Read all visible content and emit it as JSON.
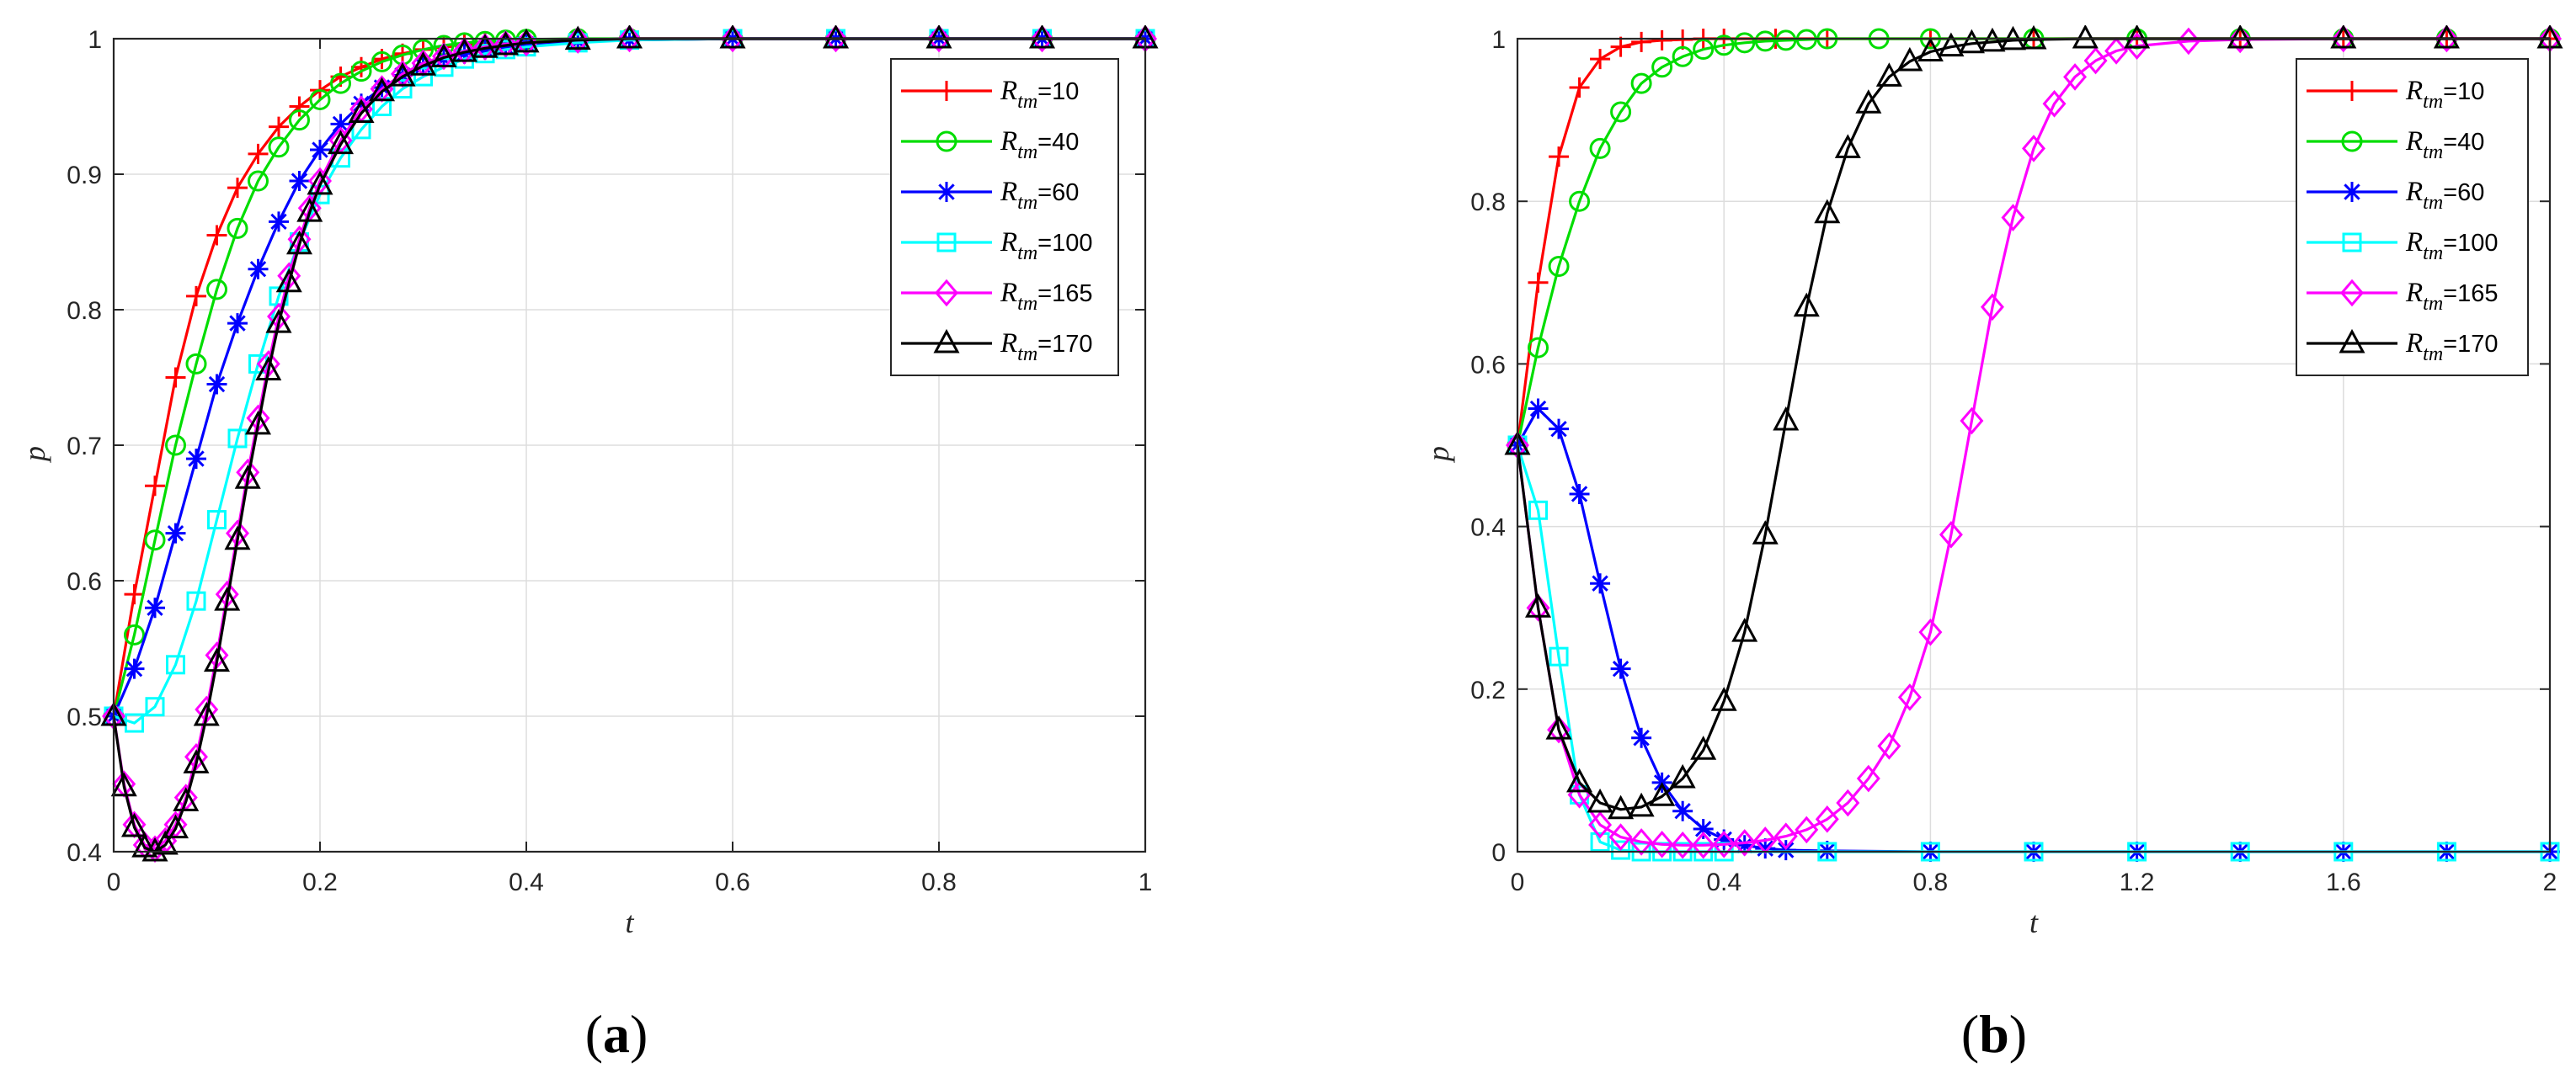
{
  "colors": {
    "r10": "#ff0000",
    "r40": "#00dd00",
    "r60": "#0000ff",
    "r100": "#00ffff",
    "r165": "#ff00ff",
    "r170": "#000000"
  },
  "labels": {
    "panel_a": {
      "open": "(",
      "letter": "a",
      "close": ")"
    },
    "panel_b": {
      "open": "(",
      "letter": "b",
      "close": ")"
    }
  },
  "chart_data": [
    {
      "id": "a",
      "type": "line",
      "xlabel": "t",
      "ylabel": "p",
      "xlim": [
        0,
        1
      ],
      "ylim": [
        0.4,
        1
      ],
      "xticks": [
        0,
        0.2,
        0.4,
        0.6,
        0.8,
        1
      ],
      "xtick_labels": [
        "0",
        "0.2",
        "0.4",
        "0.6",
        "0.8",
        "1"
      ],
      "yticks": [
        0.4,
        0.5,
        0.6,
        0.7,
        0.8,
        0.9,
        1
      ],
      "ytick_labels": [
        "0.4",
        "0.5",
        "0.6",
        "0.7",
        "0.8",
        "0.9",
        "1"
      ],
      "grid": true,
      "legend_position": "top-right",
      "series": [
        {
          "symbol": "R",
          "sub": "tm",
          "eq": "=10",
          "color_key": "r10",
          "marker": "plus",
          "x": [
            0,
            0.02,
            0.04,
            0.06,
            0.08,
            0.1,
            0.12,
            0.14,
            0.16,
            0.18,
            0.2,
            0.22,
            0.24,
            0.26,
            0.28,
            0.3,
            0.32,
            0.34,
            0.36,
            0.38,
            0.4,
            0.45,
            0.5,
            0.6,
            0.7,
            0.8,
            0.9,
            1.0
          ],
          "y": [
            0.5,
            0.59,
            0.67,
            0.75,
            0.81,
            0.855,
            0.89,
            0.915,
            0.935,
            0.95,
            0.962,
            0.972,
            0.979,
            0.985,
            0.989,
            0.992,
            0.994,
            0.996,
            0.997,
            0.998,
            0.999,
            0.9995,
            1,
            1,
            1,
            1,
            1,
            1
          ]
        },
        {
          "symbol": "R",
          "sub": "tm",
          "eq": "=40",
          "color_key": "r40",
          "marker": "circle",
          "x": [
            0,
            0.02,
            0.04,
            0.06,
            0.08,
            0.1,
            0.12,
            0.14,
            0.16,
            0.18,
            0.2,
            0.22,
            0.24,
            0.26,
            0.28,
            0.3,
            0.32,
            0.34,
            0.36,
            0.38,
            0.4,
            0.45,
            0.5,
            0.6,
            0.7,
            0.8,
            0.9,
            1.0
          ],
          "y": [
            0.5,
            0.56,
            0.63,
            0.7,
            0.76,
            0.815,
            0.86,
            0.895,
            0.92,
            0.94,
            0.955,
            0.967,
            0.976,
            0.983,
            0.988,
            0.992,
            0.995,
            0.997,
            0.998,
            0.999,
            0.9995,
            1,
            1,
            1,
            1,
            1,
            1,
            1
          ]
        },
        {
          "symbol": "R",
          "sub": "tm",
          "eq": "=60",
          "color_key": "r60",
          "marker": "star",
          "x": [
            0,
            0.02,
            0.04,
            0.06,
            0.08,
            0.1,
            0.12,
            0.14,
            0.16,
            0.18,
            0.2,
            0.22,
            0.24,
            0.26,
            0.28,
            0.3,
            0.32,
            0.34,
            0.36,
            0.38,
            0.4,
            0.45,
            0.5,
            0.6,
            0.7,
            0.8,
            0.9,
            1.0
          ],
          "y": [
            0.5,
            0.535,
            0.58,
            0.635,
            0.69,
            0.745,
            0.79,
            0.83,
            0.865,
            0.895,
            0.918,
            0.937,
            0.952,
            0.964,
            0.973,
            0.98,
            0.985,
            0.989,
            0.992,
            0.994,
            0.996,
            0.998,
            0.999,
            1,
            1,
            1,
            1,
            1
          ]
        },
        {
          "symbol": "R",
          "sub": "tm",
          "eq": "=100",
          "color_key": "r100",
          "marker": "square",
          "x": [
            0,
            0.02,
            0.04,
            0.06,
            0.08,
            0.1,
            0.12,
            0.14,
            0.16,
            0.18,
            0.2,
            0.22,
            0.24,
            0.26,
            0.28,
            0.3,
            0.32,
            0.34,
            0.36,
            0.38,
            0.4,
            0.45,
            0.5,
            0.6,
            0.7,
            0.8,
            0.9,
            1.0
          ],
          "y": [
            0.5,
            0.495,
            0.507,
            0.538,
            0.585,
            0.645,
            0.705,
            0.76,
            0.81,
            0.85,
            0.885,
            0.912,
            0.933,
            0.95,
            0.963,
            0.972,
            0.979,
            0.985,
            0.989,
            0.992,
            0.994,
            0.997,
            0.999,
            1,
            1,
            1,
            1,
            1
          ]
        },
        {
          "symbol": "R",
          "sub": "tm",
          "eq": "=165",
          "color_key": "r165",
          "marker": "diamond",
          "x": [
            0,
            0.01,
            0.02,
            0.03,
            0.04,
            0.05,
            0.06,
            0.07,
            0.08,
            0.09,
            0.1,
            0.11,
            0.12,
            0.13,
            0.14,
            0.15,
            0.16,
            0.17,
            0.18,
            0.19,
            0.2,
            0.22,
            0.24,
            0.26,
            0.28,
            0.3,
            0.32,
            0.34,
            0.36,
            0.38,
            0.4,
            0.45,
            0.5,
            0.6,
            0.7,
            0.8,
            0.9,
            1.0
          ],
          "y": [
            0.5,
            0.45,
            0.42,
            0.405,
            0.402,
            0.408,
            0.42,
            0.44,
            0.47,
            0.505,
            0.545,
            0.59,
            0.635,
            0.68,
            0.72,
            0.76,
            0.795,
            0.825,
            0.852,
            0.875,
            0.895,
            0.925,
            0.948,
            0.963,
            0.974,
            0.982,
            0.987,
            0.991,
            0.994,
            0.996,
            0.997,
            0.999,
            1,
            1,
            1,
            1,
            1,
            1
          ]
        },
        {
          "symbol": "R",
          "sub": "tm",
          "eq": "=170",
          "color_key": "r170",
          "marker": "triangle",
          "x": [
            0,
            0.01,
            0.02,
            0.03,
            0.04,
            0.05,
            0.06,
            0.07,
            0.08,
            0.09,
            0.1,
            0.11,
            0.12,
            0.13,
            0.14,
            0.15,
            0.16,
            0.17,
            0.18,
            0.19,
            0.2,
            0.22,
            0.24,
            0.26,
            0.28,
            0.3,
            0.32,
            0.34,
            0.36,
            0.38,
            0.4,
            0.45,
            0.5,
            0.6,
            0.7,
            0.8,
            0.9,
            1.0
          ],
          "y": [
            0.5,
            0.448,
            0.418,
            0.403,
            0.4,
            0.405,
            0.417,
            0.437,
            0.465,
            0.5,
            0.54,
            0.585,
            0.63,
            0.675,
            0.715,
            0.755,
            0.79,
            0.82,
            0.848,
            0.872,
            0.892,
            0.922,
            0.945,
            0.961,
            0.972,
            0.98,
            0.986,
            0.99,
            0.993,
            0.995,
            0.997,
            0.999,
            1,
            1,
            1,
            1,
            1,
            1
          ]
        }
      ]
    },
    {
      "id": "b",
      "type": "line",
      "xlabel": "t",
      "ylabel": "p",
      "xlim": [
        0,
        2
      ],
      "ylim": [
        0,
        1
      ],
      "xticks": [
        0,
        0.4,
        0.8,
        1.2,
        1.6,
        2
      ],
      "xtick_labels": [
        "0",
        "0.4",
        "0.8",
        "1.2",
        "1.6",
        "2"
      ],
      "yticks": [
        0,
        0.2,
        0.4,
        0.6,
        0.8,
        1
      ],
      "ytick_labels": [
        "0",
        "0.2",
        "0.4",
        "0.6",
        "0.8",
        "1"
      ],
      "grid": true,
      "legend_position": "top-right",
      "series": [
        {
          "symbol": "R",
          "sub": "tm",
          "eq": "=10",
          "color_key": "r10",
          "marker": "plus",
          "x": [
            0,
            0.04,
            0.08,
            0.12,
            0.16,
            0.2,
            0.24,
            0.28,
            0.32,
            0.36,
            0.4,
            0.5,
            0.6,
            0.8,
            1.0,
            1.2,
            1.4,
            1.6,
            1.8,
            2.0
          ],
          "y": [
            0.5,
            0.7,
            0.855,
            0.94,
            0.975,
            0.99,
            0.996,
            0.998,
            0.999,
            1,
            1,
            1,
            1,
            1,
            1,
            1,
            1,
            1,
            1,
            1
          ]
        },
        {
          "symbol": "R",
          "sub": "tm",
          "eq": "=40",
          "color_key": "r40",
          "marker": "circle",
          "x": [
            0,
            0.04,
            0.08,
            0.12,
            0.16,
            0.2,
            0.24,
            0.28,
            0.32,
            0.36,
            0.4,
            0.44,
            0.48,
            0.52,
            0.56,
            0.6,
            0.7,
            0.8,
            1.0,
            1.2,
            1.4,
            1.6,
            1.8,
            2.0
          ],
          "y": [
            0.5,
            0.62,
            0.72,
            0.8,
            0.865,
            0.91,
            0.945,
            0.965,
            0.978,
            0.987,
            0.992,
            0.995,
            0.997,
            0.998,
            0.999,
            1,
            1,
            1,
            1,
            1,
            1,
            1,
            1,
            1
          ]
        },
        {
          "symbol": "R",
          "sub": "tm",
          "eq": "=60",
          "color_key": "r60",
          "marker": "star",
          "x": [
            0,
            0.04,
            0.08,
            0.12,
            0.16,
            0.2,
            0.24,
            0.28,
            0.32,
            0.36,
            0.4,
            0.44,
            0.48,
            0.52,
            0.6,
            0.8,
            1.0,
            1.2,
            1.4,
            1.6,
            1.8,
            2.0
          ],
          "y": [
            0.5,
            0.545,
            0.52,
            0.44,
            0.33,
            0.225,
            0.14,
            0.085,
            0.05,
            0.028,
            0.015,
            0.008,
            0.004,
            0.002,
            0.001,
            0,
            0,
            0,
            0,
            0,
            0,
            0
          ]
        },
        {
          "symbol": "R",
          "sub": "tm",
          "eq": "=100",
          "color_key": "r100",
          "marker": "square",
          "x": [
            0,
            0.04,
            0.08,
            0.12,
            0.16,
            0.2,
            0.24,
            0.28,
            0.32,
            0.36,
            0.4,
            0.6,
            0.8,
            1.0,
            1.2,
            1.4,
            1.6,
            1.8,
            2.0
          ],
          "y": [
            0.5,
            0.42,
            0.24,
            0.07,
            0.012,
            0.002,
            0,
            0,
            0,
            0,
            0,
            0,
            0,
            0,
            0,
            0,
            0,
            0,
            0
          ]
        },
        {
          "symbol": "R",
          "sub": "tm",
          "eq": "=165",
          "color_key": "r165",
          "marker": "diamond",
          "x": [
            0,
            0.04,
            0.08,
            0.12,
            0.16,
            0.2,
            0.24,
            0.28,
            0.32,
            0.36,
            0.4,
            0.44,
            0.48,
            0.52,
            0.56,
            0.6,
            0.64,
            0.68,
            0.72,
            0.76,
            0.8,
            0.84,
            0.88,
            0.92,
            0.96,
            1.0,
            1.04,
            1.08,
            1.12,
            1.16,
            1.2,
            1.3,
            1.4,
            1.6,
            1.8,
            2.0
          ],
          "y": [
            0.5,
            0.3,
            0.15,
            0.07,
            0.033,
            0.018,
            0.012,
            0.009,
            0.008,
            0.008,
            0.009,
            0.011,
            0.014,
            0.019,
            0.027,
            0.04,
            0.06,
            0.09,
            0.13,
            0.19,
            0.27,
            0.39,
            0.53,
            0.67,
            0.78,
            0.865,
            0.92,
            0.953,
            0.973,
            0.985,
            0.991,
            0.997,
            0.999,
            1,
            1,
            1
          ]
        },
        {
          "symbol": "R",
          "sub": "tm",
          "eq": "=170",
          "color_key": "r170",
          "marker": "triangle",
          "x": [
            0,
            0.04,
            0.08,
            0.12,
            0.16,
            0.2,
            0.24,
            0.28,
            0.32,
            0.36,
            0.4,
            0.44,
            0.48,
            0.52,
            0.56,
            0.6,
            0.64,
            0.68,
            0.72,
            0.76,
            0.8,
            0.84,
            0.88,
            0.92,
            0.96,
            1.0,
            1.1,
            1.2,
            1.4,
            1.6,
            1.8,
            2.0
          ],
          "y": [
            0.5,
            0.3,
            0.15,
            0.085,
            0.06,
            0.052,
            0.055,
            0.068,
            0.09,
            0.125,
            0.185,
            0.27,
            0.39,
            0.53,
            0.67,
            0.785,
            0.865,
            0.92,
            0.953,
            0.972,
            0.984,
            0.99,
            0.994,
            0.996,
            0.998,
            0.999,
            1,
            1,
            1,
            1,
            1,
            1
          ]
        }
      ]
    }
  ]
}
